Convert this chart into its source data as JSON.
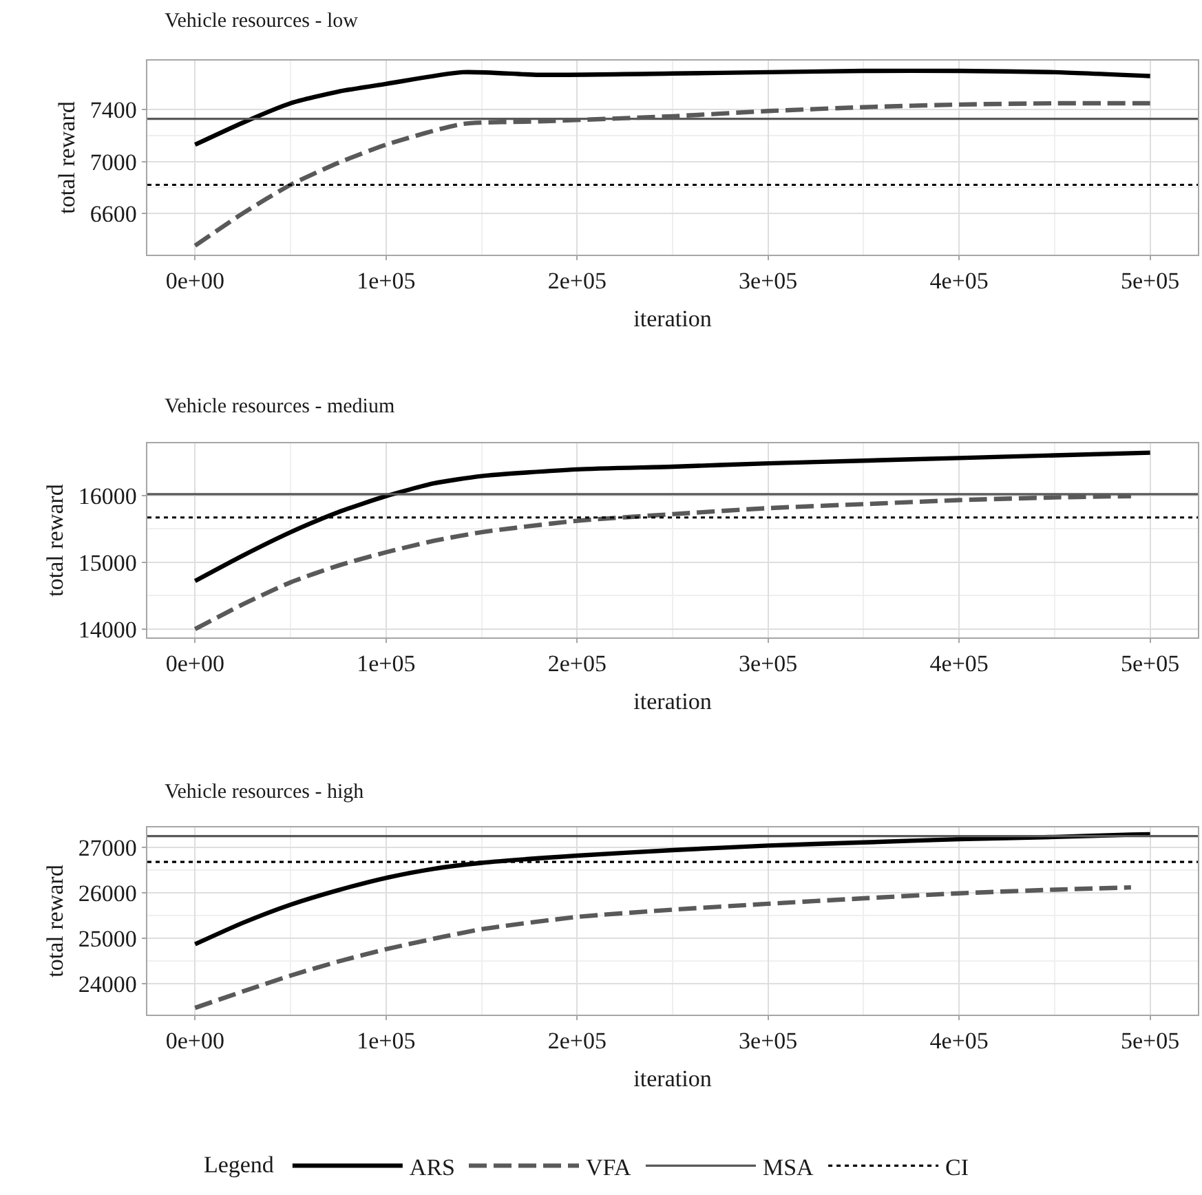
{
  "chart_data": [
    {
      "type": "line",
      "title": "Vehicle resources - low",
      "xlabel": "iteration",
      "ylabel": "total reward",
      "x": [
        0,
        25000,
        50000,
        75000,
        100000,
        140000,
        180000,
        250000,
        300000,
        350000,
        400000,
        450000,
        500000
      ],
      "xlim": [
        -25000,
        525000
      ],
      "ylim": [
        6280,
        7780
      ],
      "xticks": [
        {
          "value": 0,
          "label": "0e+00"
        },
        {
          "value": 100000,
          "label": "1e+05"
        },
        {
          "value": 200000,
          "label": "2e+05"
        },
        {
          "value": 300000,
          "label": "3e+05"
        },
        {
          "value": 400000,
          "label": "4e+05"
        },
        {
          "value": 500000,
          "label": "5e+05"
        }
      ],
      "yticks": [
        6600,
        7000,
        7400
      ],
      "grid": true,
      "legend": false,
      "series": [
        {
          "color": "#000000",
          "line_style": "solid",
          "values": [
            7130,
            7300,
            7450,
            7540,
            7600,
            7690,
            7670,
            7680,
            7690,
            7700,
            7700,
            7690,
            7660
          ]
        },
        {
          "color": "#595959",
          "line_style": "dashed",
          "values": [
            6350,
            6600,
            6820,
            6990,
            7130,
            7290,
            7310,
            7350,
            7390,
            7420,
            7440,
            7450,
            7450
          ]
        },
        {
          "color": "#595959",
          "line_style": "solid",
          "x": [
            -25000,
            525000
          ],
          "values": [
            7330,
            7330
          ]
        },
        {
          "color": "#000000",
          "line_style": "dotted",
          "x": [
            -25000,
            525000
          ],
          "values": [
            6820,
            6820
          ]
        }
      ]
    },
    {
      "type": "line",
      "title": "Vehicle resources - medium",
      "xlabel": "iteration",
      "ylabel": "total reward",
      "x": [
        0,
        25000,
        50000,
        75000,
        100000,
        125000,
        150000,
        200000,
        250000,
        300000,
        350000,
        400000,
        450000,
        500000
      ],
      "xlim": [
        -25000,
        525000
      ],
      "ylim": [
        13875,
        16780
      ],
      "xticks": [
        {
          "value": 0,
          "label": "0e+00"
        },
        {
          "value": 100000,
          "label": "1e+05"
        },
        {
          "value": 200000,
          "label": "2e+05"
        },
        {
          "value": 300000,
          "label": "3e+05"
        },
        {
          "value": 400000,
          "label": "4e+05"
        },
        {
          "value": 500000,
          "label": "5e+05"
        }
      ],
      "yticks": [
        14000,
        15000,
        16000
      ],
      "grid": true,
      "legend": false,
      "series": [
        {
          "color": "#000000",
          "line_style": "solid",
          "values": [
            14720,
            15100,
            15450,
            15750,
            15990,
            16180,
            16290,
            16390,
            16430,
            16480,
            16520,
            16560,
            16600,
            16640
          ]
        },
        {
          "color": "#595959",
          "line_style": "dashed",
          "x": [
            0,
            25000,
            50000,
            75000,
            100000,
            125000,
            150000,
            200000,
            250000,
            300000,
            350000,
            400000,
            450000,
            490000
          ],
          "values": [
            14000,
            14370,
            14700,
            14950,
            15150,
            15320,
            15450,
            15620,
            15720,
            15810,
            15870,
            15930,
            15970,
            15990
          ]
        },
        {
          "color": "#595959",
          "line_style": "solid",
          "x": [
            -25000,
            525000
          ],
          "values": [
            16020,
            16020
          ]
        },
        {
          "color": "#000000",
          "line_style": "dotted",
          "x": [
            -25000,
            525000
          ],
          "values": [
            15670,
            15670
          ]
        }
      ]
    },
    {
      "type": "line",
      "title": "Vehicle resources - high",
      "xlabel": "iteration",
      "ylabel": "total reward",
      "legend_title": "Legend",
      "x": [
        0,
        25000,
        50000,
        75000,
        100000,
        125000,
        150000,
        200000,
        250000,
        300000,
        350000,
        400000,
        450000,
        490000,
        500000
      ],
      "xlim": [
        -25000,
        525000
      ],
      "ylim": [
        23320,
        27440
      ],
      "xticks": [
        {
          "value": 0,
          "label": "0e+00"
        },
        {
          "value": 100000,
          "label": "1e+05"
        },
        {
          "value": 200000,
          "label": "2e+05"
        },
        {
          "value": 300000,
          "label": "3e+05"
        },
        {
          "value": 400000,
          "label": "4e+05"
        },
        {
          "value": 500000,
          "label": "5e+05"
        }
      ],
      "yticks": [
        24000,
        25000,
        26000,
        27000
      ],
      "grid": true,
      "legend": "bottom",
      "series": [
        {
          "name": "ARS",
          "color": "#000000",
          "line_style": "solid",
          "values": [
            24870,
            25340,
            25740,
            26060,
            26330,
            26530,
            26660,
            26820,
            26940,
            27040,
            27110,
            27180,
            27230,
            27280,
            27290
          ]
        },
        {
          "name": "VFA",
          "color": "#595959",
          "line_style": "dashed",
          "values": [
            23470,
            23830,
            24180,
            24490,
            24760,
            24990,
            25200,
            25470,
            25630,
            25760,
            25880,
            25990,
            26070,
            26120,
            null
          ]
        },
        {
          "name": "MSA",
          "color": "#595959",
          "line_style": "solid",
          "x": [
            -25000,
            525000
          ],
          "values": [
            27250,
            27250
          ]
        },
        {
          "name": "CI",
          "color": "#000000",
          "line_style": "dotted",
          "x": [
            -25000,
            525000
          ],
          "values": [
            26680,
            26680
          ]
        }
      ]
    }
  ]
}
